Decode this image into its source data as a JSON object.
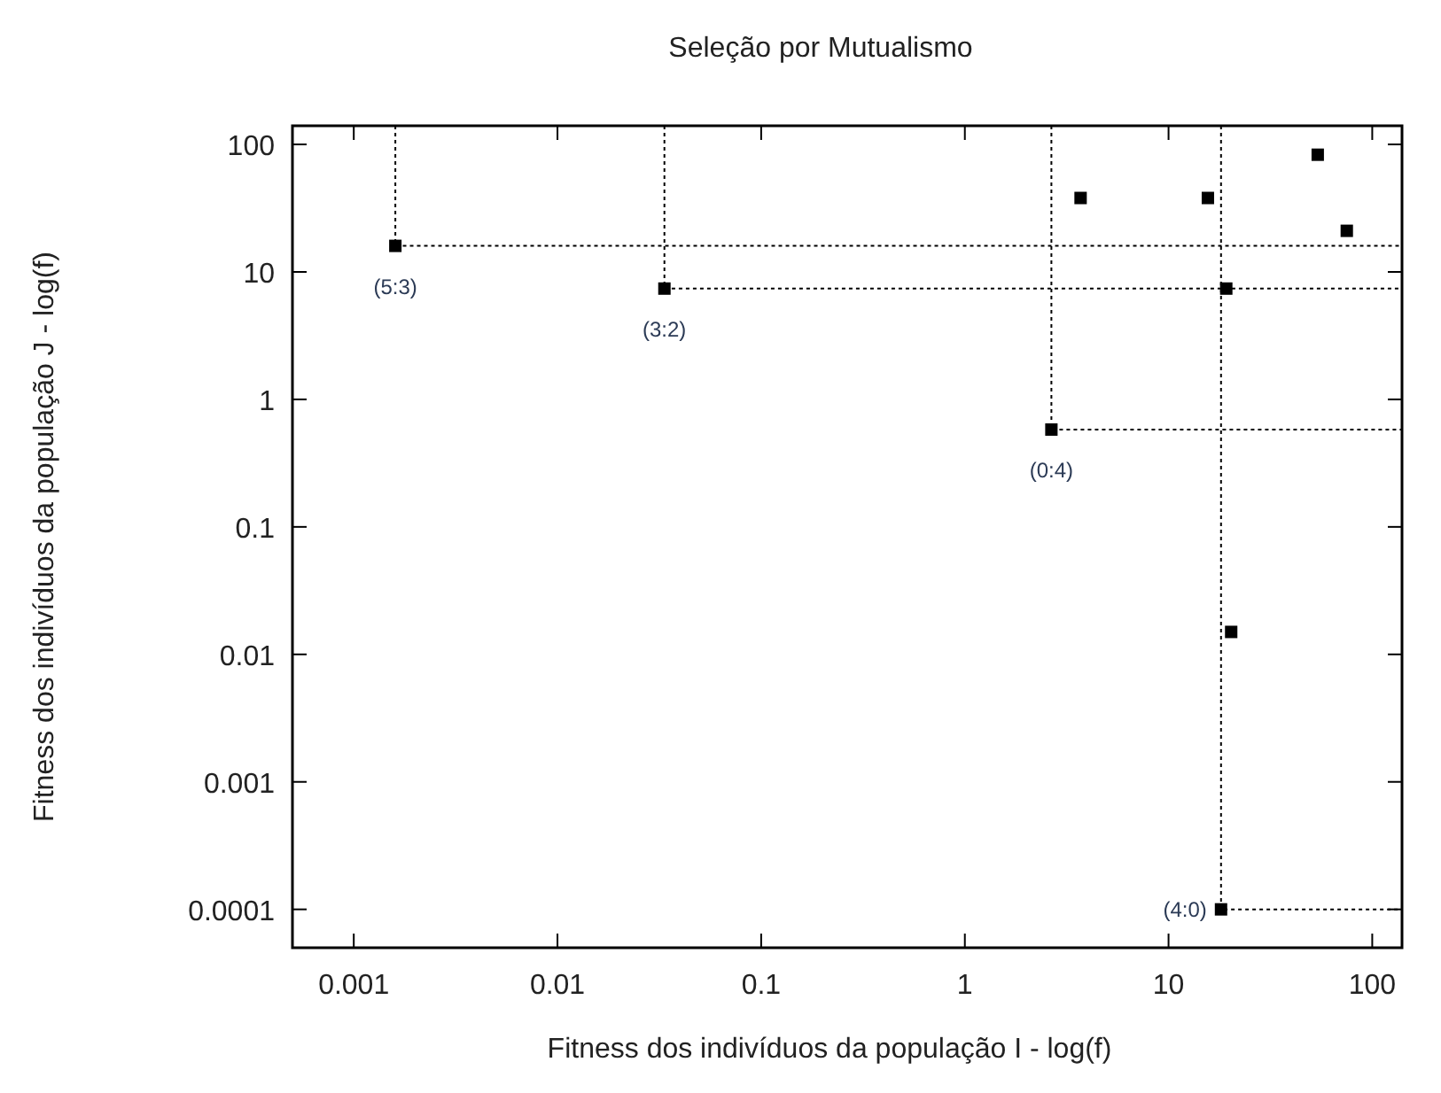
{
  "chart_data": {
    "type": "scatter",
    "title": "Seleção por Mutualismo",
    "xlabel": "Fitness dos indivíduos da população I - log(f)",
    "ylabel": "Fitness dos indivíduos da população J - log(f)",
    "series": [
      {
        "type": "line",
        "line_style": "dotted",
        "marker": "none",
        "color": "#000000",
        "x": [
          0.0016,
          0.0016,
          140
        ],
        "values": [
          140,
          16,
          16
        ]
      },
      {
        "type": "line",
        "line_style": "dotted",
        "marker": "none",
        "color": "#000000",
        "x": [
          0.0335,
          0.0335,
          140
        ],
        "values": [
          140,
          7.4,
          7.4
        ]
      },
      {
        "type": "line",
        "line_style": "dotted",
        "marker": "none",
        "color": "#000000",
        "x": [
          2.66,
          2.66,
          140
        ],
        "values": [
          140,
          0.58,
          0.58
        ]
      },
      {
        "type": "line",
        "line_style": "dotted",
        "marker": "none",
        "color": "#000000",
        "x": [
          18.1,
          18.1,
          140
        ],
        "values": [
          140,
          0.0001,
          0.0001
        ]
      },
      {
        "marker": "square",
        "color": "#000000",
        "x": [
          0.0016,
          0.0335,
          2.66,
          18.1,
          3.7,
          15.6,
          19.2,
          20.3,
          54,
          75
        ],
        "values": [
          16,
          7.4,
          0.58,
          0.0001,
          38,
          38,
          7.4,
          0.015,
          83,
          21
        ]
      }
    ],
    "log": "xy",
    "grid": false,
    "xlim": [
      0.0005,
      140
    ],
    "ylim": [
      5e-05,
      140
    ],
    "xticks": [
      0.001,
      0.01,
      0.1,
      1,
      10,
      100
    ],
    "yticks": [
      0.0001,
      0.001,
      0.01,
      0.1,
      1,
      10,
      100
    ],
    "annotations": [
      {
        "text": "(5:3)",
        "x": 0.0016,
        "y": 16
      },
      {
        "text": "(3:2)",
        "x": 0.0335,
        "y": 7.4
      },
      {
        "text": "(0:4)",
        "x": 2.66,
        "y": 0.58
      },
      {
        "text": "(4:0)",
        "x": 18.1,
        "y": 0.0001
      }
    ]
  }
}
